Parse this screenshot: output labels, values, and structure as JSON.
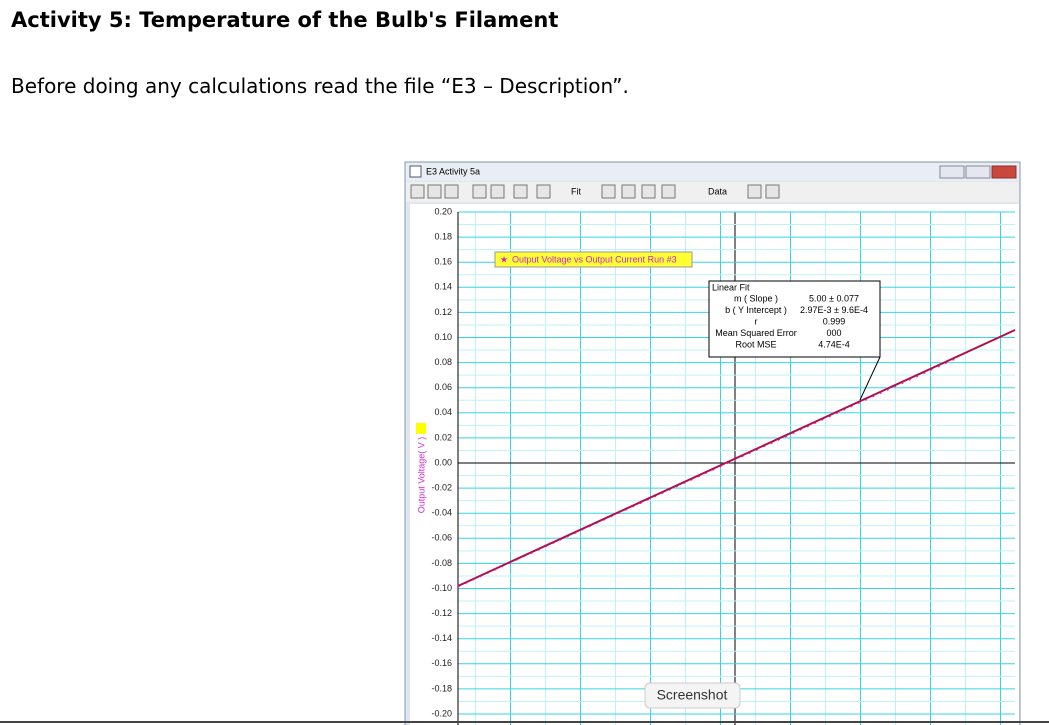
{
  "header": {
    "title": "Activity 5: Temperature of the Bulb's Filament"
  },
  "intro": "Before doing any calculations read the file “E3 – Description”.",
  "window": {
    "title": "E3 Activity 5a",
    "toolbar": {
      "fit": "Fit",
      "data": "Data"
    },
    "chart": {
      "y_label": "Output Voltage( V )",
      "annotation": "Output Voltage vs Output Current Run #3",
      "ylim": [
        -0.2,
        0.2
      ],
      "yticks": [
        {
          "value": 0.2,
          "label": "0.20"
        },
        {
          "value": 0.18,
          "label": "0.18"
        },
        {
          "value": 0.16,
          "label": "0.16"
        },
        {
          "value": 0.14,
          "label": "0.14"
        },
        {
          "value": 0.12,
          "label": "0.12"
        },
        {
          "value": 0.1,
          "label": "0.10"
        },
        {
          "value": 0.08,
          "label": "0.08"
        },
        {
          "value": 0.06,
          "label": "0.06"
        },
        {
          "value": 0.04,
          "label": "0.04"
        },
        {
          "value": 0.02,
          "label": "0.02"
        },
        {
          "value": 0,
          "label": "0.00"
        },
        {
          "value": -0.02,
          "label": "-0.02"
        },
        {
          "value": -0.04,
          "label": "-0.04"
        },
        {
          "value": -0.06,
          "label": "-0.06"
        },
        {
          "value": -0.08,
          "label": "-0.08"
        },
        {
          "value": -0.1,
          "label": "-0.10"
        },
        {
          "value": -0.12,
          "label": "-0.12"
        },
        {
          "value": -0.14,
          "label": "-0.14"
        },
        {
          "value": -0.16,
          "label": "-0.16"
        },
        {
          "value": -0.18,
          "label": "-0.18"
        },
        {
          "value": -0.2,
          "label": "-0.20"
        }
      ],
      "fit_box": {
        "title": "Linear Fit",
        "rows": [
          [
            "m ( Slope )",
            "5.00 ± 0.077"
          ],
          [
            "b ( Y Intercept )",
            "2.97E-3 ± 9.6E-4"
          ],
          [
            "r",
            "0.999"
          ],
          [
            "Mean Squared Error",
            "000"
          ],
          [
            "Root MSE",
            "4.74E-4"
          ]
        ]
      }
    }
  },
  "tooltip": "Screenshot"
}
